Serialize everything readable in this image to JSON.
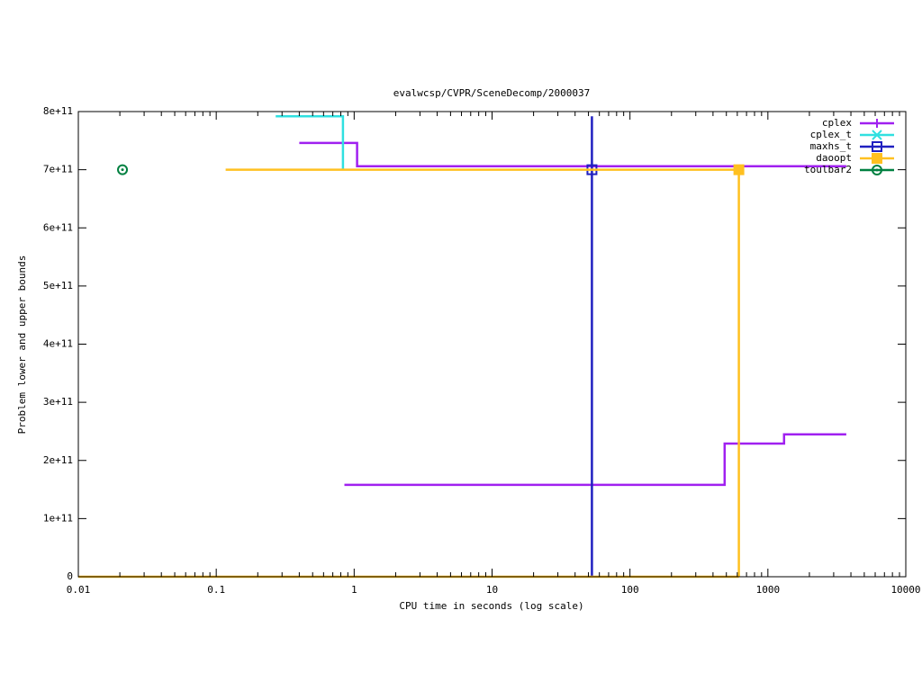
{
  "chart_data": {
    "type": "line",
    "title": "evalwcsp/CVPR/SceneDecomp/2000037",
    "x_label": "CPU time in seconds (log scale)",
    "y_label": "Problem lower and upper bounds",
    "x_log": true,
    "xlim": [
      0.01,
      10000
    ],
    "xticks": [
      0.01,
      0.1,
      1,
      10,
      100,
      1000,
      10000
    ],
    "ylim": [
      0,
      800000000000
    ],
    "yticks": [
      0,
      {
        "value": 100000000000,
        "label": "1e+11"
      },
      {
        "value": 200000000000,
        "label": "2e+11"
      },
      {
        "value": 300000000000,
        "label": "3e+11"
      },
      {
        "value": 400000000000,
        "label": "4e+11"
      },
      {
        "value": 500000000000,
        "label": "5e+11"
      },
      {
        "value": 600000000000,
        "label": "6e+11"
      },
      {
        "value": 700000000000,
        "label": "7e+11"
      },
      {
        "value": 800000000000,
        "label": "8e+11"
      }
    ],
    "legend": "top-right",
    "series": [
      {
        "name": "cplex",
        "color": "#a020f0",
        "marker": "plus",
        "x": [
          0.4,
          1.05,
          1.05,
          3700,
          null,
          0.85,
          486,
          486,
          1310,
          1310,
          3700
        ],
        "values": [
          746000000000,
          746000000000,
          706000000000,
          706000000000,
          null,
          158000000000,
          158000000000,
          229000000000,
          229000000000,
          245000000000,
          245000000000
        ],
        "points": {
          "x": [],
          "values": []
        }
      },
      {
        "name": "cplex_t",
        "color": "#30e0e0",
        "marker": "cross",
        "x": [
          0.27,
          0.83,
          0.83
        ],
        "values": [
          792000000000,
          792000000000,
          700000000000
        ],
        "points": {
          "x": [],
          "values": []
        }
      },
      {
        "name": "maxhs_t",
        "color": "#2020c0",
        "marker": "square",
        "x": [
          53,
          53
        ],
        "values": [
          792000000000,
          0
        ],
        "points": {
          "x": [
            53
          ],
          "values": [
            700000000000
          ]
        }
      },
      {
        "name": "daoopt",
        "color": "#ffc020",
        "marker": "filled-square",
        "x": [
          0.117,
          616,
          616,
          null,
          0.01,
          616
        ],
        "values": [
          700000000000,
          700000000000,
          0,
          null,
          0,
          0
        ],
        "points": {
          "x": [
            616
          ],
          "values": [
            700000000000
          ]
        }
      },
      {
        "name": "toulbar2",
        "color": "#008040",
        "marker": "circle",
        "x": [],
        "values": [],
        "points": {
          "x": [
            0.0209
          ],
          "values": [
            700000000000
          ]
        }
      }
    ]
  }
}
